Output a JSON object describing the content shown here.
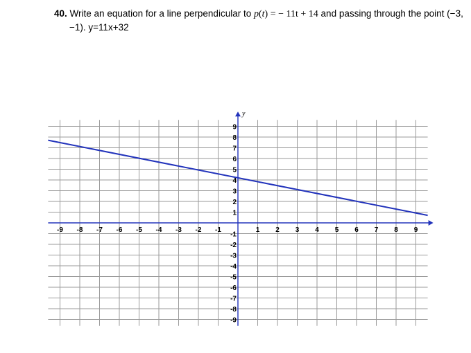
{
  "question": {
    "number": "40.",
    "text_before": "Write an equation for a line perpendicular to",
    "function_name": "p",
    "function_var": "t",
    "function_rhs": "= − 11t + 14",
    "text_after": "and passing through the point (−3,",
    "line2": "−1). y=11x+32"
  },
  "chart_data": {
    "type": "line",
    "xlabel": "",
    "ylabel": "y",
    "xlim": [
      -9.6,
      9.6
    ],
    "ylim": [
      -9.6,
      9.6
    ],
    "x_ticks": [
      -9,
      -8,
      -7,
      -6,
      -5,
      -4,
      -3,
      -2,
      -1,
      1,
      2,
      3,
      4,
      5,
      6,
      7,
      8,
      9
    ],
    "y_ticks": [
      9,
      8,
      7,
      6,
      5,
      4,
      3,
      2,
      1,
      -1,
      -2,
      -3,
      -4,
      -5,
      -6,
      -7,
      -8,
      -9
    ],
    "grid": true,
    "series": [
      {
        "x": [
          -9.6,
          9.6
        ],
        "y": [
          7.7,
          0.7
        ],
        "color": "#2233bb"
      }
    ]
  }
}
